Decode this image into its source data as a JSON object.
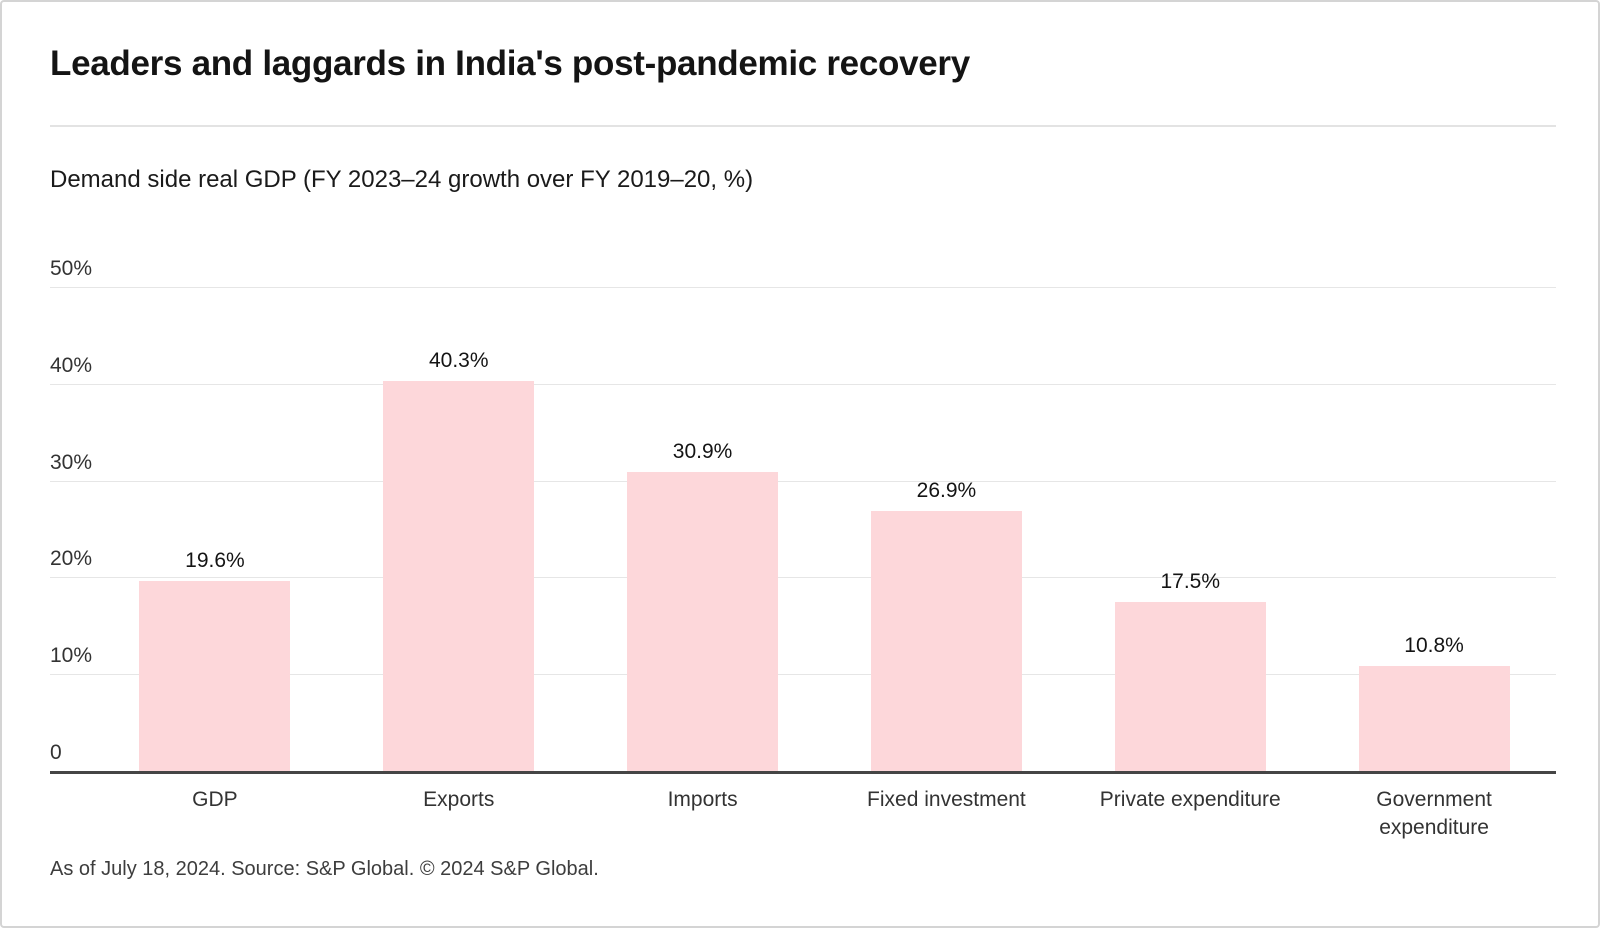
{
  "header": {
    "title": "Leaders and laggards in India's post-pandemic recovery",
    "subtitle": "Demand side real GDP (FY 2023–24 growth over FY 2019–20, %)"
  },
  "chart_data": {
    "type": "bar",
    "title": "Leaders and laggards in India's post-pandemic recovery",
    "subtitle": "Demand side real GDP (FY 2023–24 growth over FY 2019–20, %)",
    "categories": [
      "GDP",
      "Exports",
      "Imports",
      "Fixed investment",
      "Private expenditure",
      "Government expenditure"
    ],
    "values": [
      19.6,
      40.3,
      30.9,
      26.9,
      17.5,
      10.8
    ],
    "value_labels": [
      "19.6%",
      "40.3%",
      "30.9%",
      "26.9%",
      "17.5%",
      "10.8%"
    ],
    "unit": "%",
    "xlabel": "",
    "ylabel": "",
    "ylim": [
      0,
      50
    ],
    "y_ticks": [
      {
        "value": 50,
        "label": "50%"
      },
      {
        "value": 40,
        "label": "40%"
      },
      {
        "value": 30,
        "label": "30%"
      },
      {
        "value": 20,
        "label": "20%"
      },
      {
        "value": 10,
        "label": "10%"
      },
      {
        "value": 0,
        "label": "0"
      }
    ],
    "grid": "horizontal",
    "legend": "none",
    "colors": {
      "bar_fill": "#fdd7da",
      "gridline": "#e6e6e6",
      "axis_line": "#454545",
      "title_text": "#141414",
      "label_text": "#333333"
    }
  },
  "footer": {
    "text": "As of July 18, 2024. Source: S&P Global. © 2024 S&P Global."
  }
}
